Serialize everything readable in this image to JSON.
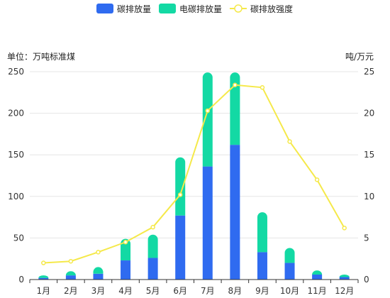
{
  "chart_data": {
    "type": "bar",
    "stacked": true,
    "categories": [
      "1月",
      "2月",
      "3月",
      "4月",
      "5月",
      "6月",
      "7月",
      "8月",
      "9月",
      "10月",
      "11月",
      "12月"
    ],
    "series": [
      {
        "name": "碳排放量",
        "kind": "bar",
        "axis": "left",
        "color": "#2f6bf0",
        "values": [
          2,
          5,
          7,
          23,
          26,
          77,
          136,
          162,
          33,
          20,
          6,
          3
        ]
      },
      {
        "name": "电碳排放量",
        "kind": "bar",
        "axis": "left",
        "color": "#13d9a4",
        "values": [
          3,
          5,
          8,
          26,
          28,
          70,
          113,
          87,
          48,
          18,
          5,
          3
        ]
      },
      {
        "name": "碳排放强度",
        "kind": "line",
        "axis": "right",
        "color": "#f5e94a",
        "values": [
          2.0,
          2.2,
          3.3,
          4.5,
          6.3,
          10.2,
          20.3,
          23.4,
          23.1,
          16.6,
          12.0,
          6.2
        ]
      }
    ],
    "left_axis": {
      "unit": "单位：万吨标准煤",
      "ylim": [
        0,
        250
      ],
      "ticks": [
        0,
        50,
        100,
        150,
        200,
        250
      ]
    },
    "right_axis": {
      "unit": "吨/万元",
      "ylim": [
        0,
        25
      ],
      "ticks": [
        0,
        5,
        10,
        15,
        20,
        25
      ]
    },
    "grid": true,
    "legend": "top-center"
  }
}
